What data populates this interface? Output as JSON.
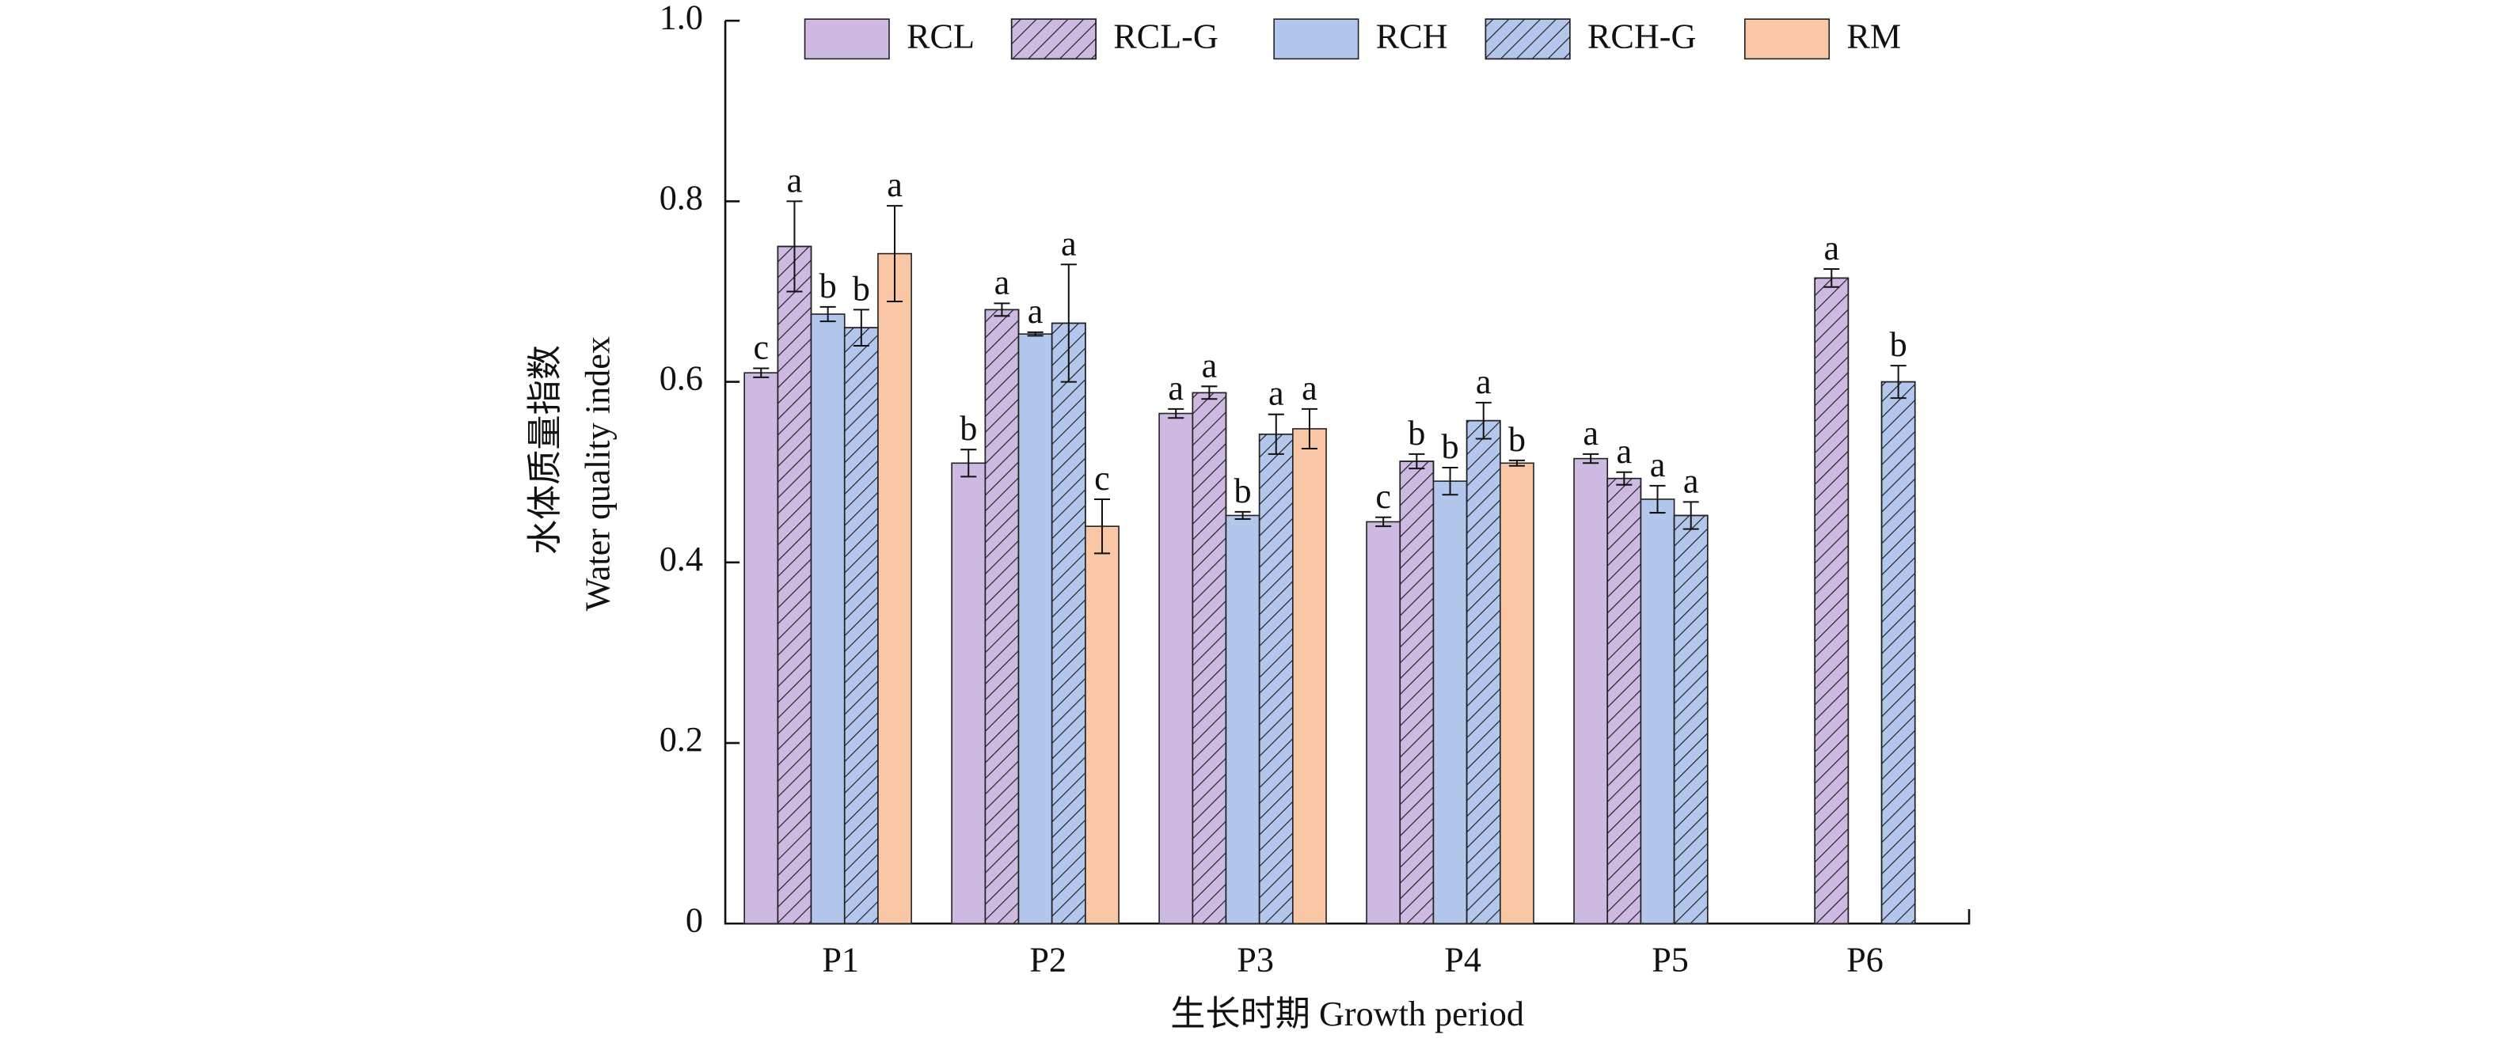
{
  "chart_data": {
    "type": "bar",
    "categories": [
      "P1",
      "P2",
      "P3",
      "P4",
      "P5",
      "P6"
    ],
    "series": [
      {
        "name": "RCL",
        "color": "#cdb9e1",
        "hatch": false,
        "values": [
          0.61,
          0.51,
          0.565,
          0.445,
          0.515,
          null
        ],
        "errors": [
          0.005,
          0.015,
          0.005,
          0.005,
          0.005,
          null
        ],
        "letters": [
          "c",
          "b",
          "a",
          "c",
          "a",
          null
        ]
      },
      {
        "name": "RCL-G",
        "color": "#cdb9e1",
        "hatch": true,
        "values": [
          0.75,
          0.68,
          0.588,
          0.512,
          0.493,
          0.715
        ],
        "errors": [
          0.05,
          0.007,
          0.007,
          0.008,
          0.007,
          0.01
        ],
        "letters": [
          "a",
          "a",
          "a",
          "b",
          "a",
          "a"
        ]
      },
      {
        "name": "RCH",
        "color": "#b3c6ec",
        "hatch": false,
        "values": [
          0.675,
          0.653,
          0.452,
          0.49,
          0.47,
          null
        ],
        "errors": [
          0.008,
          0.002,
          0.004,
          0.015,
          0.015,
          null
        ],
        "letters": [
          "b",
          "a",
          "b",
          "b",
          "a",
          null
        ]
      },
      {
        "name": "RCH-G",
        "color": "#b3c6ec",
        "hatch": true,
        "values": [
          0.66,
          0.665,
          0.542,
          0.557,
          0.452,
          0.6
        ],
        "errors": [
          0.02,
          0.065,
          0.022,
          0.02,
          0.015,
          0.018
        ],
        "letters": [
          "b",
          "a",
          "a",
          "a",
          "a",
          "b"
        ]
      },
      {
        "name": "RM",
        "color": "#f9c7a6",
        "hatch": false,
        "values": [
          0.742,
          0.44,
          0.548,
          0.51,
          null,
          null
        ],
        "errors": [
          0.053,
          0.03,
          0.022,
          0.003,
          null,
          null
        ],
        "letters": [
          "a",
          "c",
          "a",
          "b",
          null,
          null
        ]
      }
    ],
    "ylabel": [
      "水体质量指数",
      "Water quality index"
    ],
    "xlabel": "生长时期 Growth period",
    "ylim": [
      0,
      1
    ],
    "yticks": [
      0,
      0.2,
      0.4,
      0.6,
      0.8,
      {
        "value": 1,
        "label": "1.0"
      }
    ],
    "legend": "upper center"
  }
}
